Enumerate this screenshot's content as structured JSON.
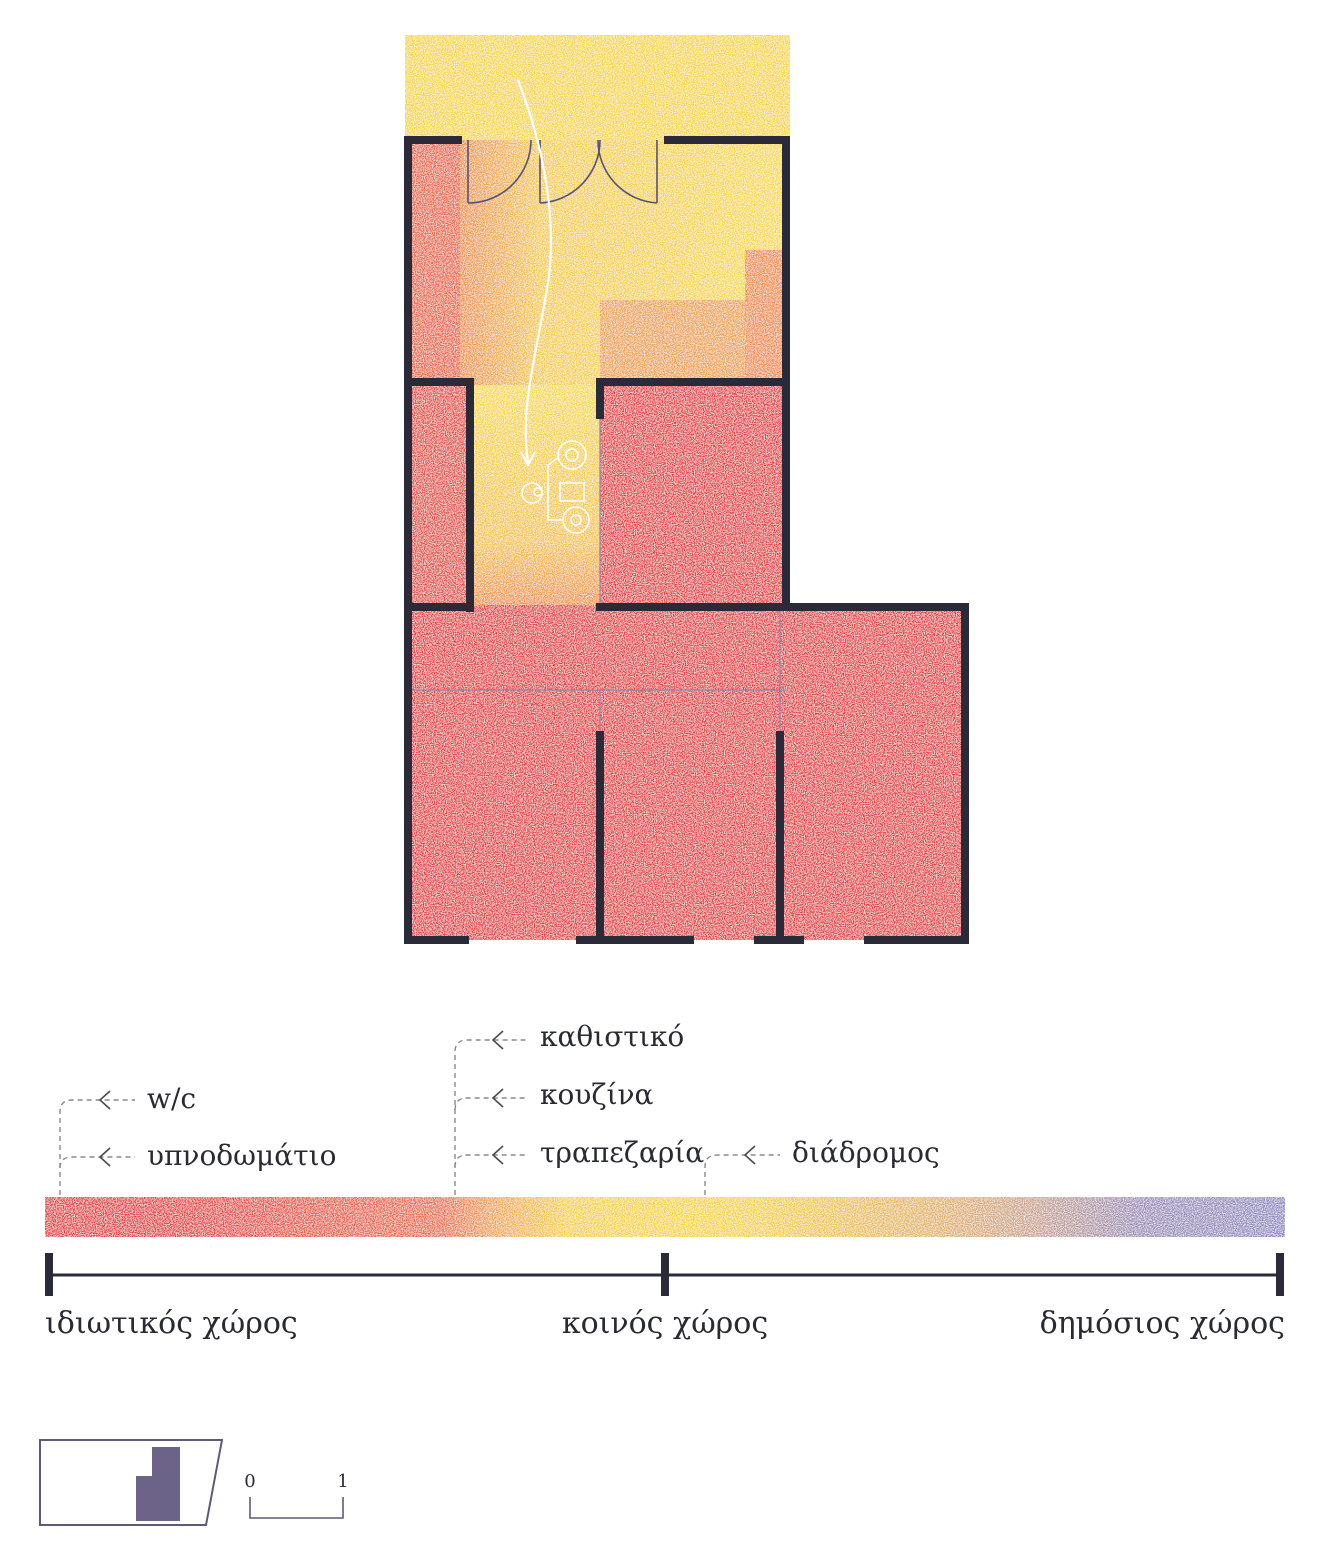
{
  "colors": {
    "private": "#e3393a",
    "common": "#f7d538",
    "public": "#8f89c0",
    "wall": "#2b2a38",
    "line": "#2b2a38",
    "leader": "#8a8a8a",
    "minimap_fill": "#6b6488"
  },
  "legend": {
    "room_labels": [
      "w/c",
      "υπνοδωμάτιο",
      "καθιστικό",
      "κουζίνα",
      "τραπεζαρία",
      "διάδρομος"
    ],
    "scale_ends": {
      "left": "ιδιωτικός χώρος",
      "middle": "κοινός χώρος",
      "right": "δημόσιος χώρος"
    }
  },
  "scale_bar": {
    "start": "0",
    "end": "1"
  },
  "icons": [
    "entry-path-arrow-icon",
    "door-swing-icon",
    "figures-icon",
    "site-minimap-icon"
  ]
}
